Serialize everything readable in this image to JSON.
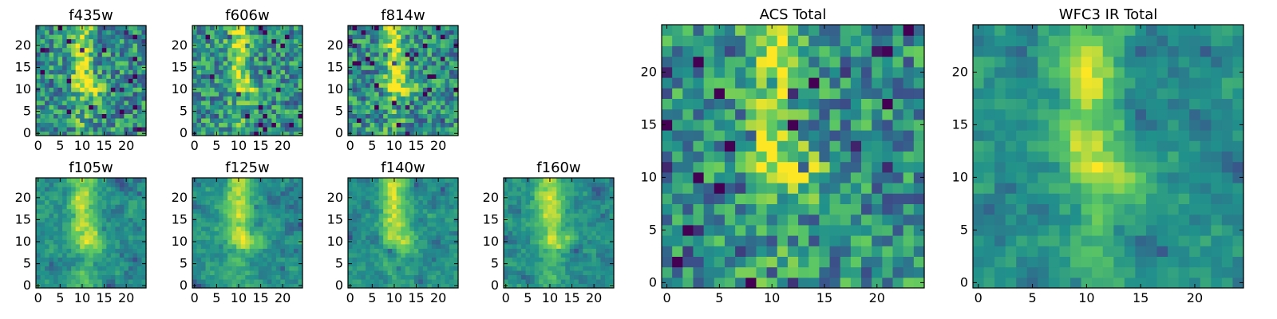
{
  "chart_data": {
    "type": "heatmap",
    "colormap": "viridis",
    "colorscale": [
      "#440154",
      "#3b528b",
      "#21918c",
      "#5ec962",
      "#fde725"
    ],
    "grid_size": [
      25,
      25
    ],
    "value_range": [
      0,
      1
    ],
    "axis_range": [
      -0.5,
      24.5
    ],
    "grid": false,
    "legend": "none",
    "cell_values": "per-pixel values are not readable from the figure",
    "panels": [
      {
        "title": "f435w",
        "xticks": [
          0,
          5,
          10,
          15,
          20
        ],
        "yticks": [
          0,
          5,
          10,
          15,
          20
        ]
      },
      {
        "title": "f606w",
        "xticks": [
          0,
          5,
          10,
          15,
          20
        ],
        "yticks": [
          0,
          5,
          10,
          15,
          20
        ]
      },
      {
        "title": "f814w",
        "xticks": [
          0,
          5,
          10,
          15,
          20
        ],
        "yticks": [
          0,
          5,
          10,
          15,
          20
        ]
      },
      {
        "title": "f105w",
        "xticks": [
          0,
          5,
          10,
          15,
          20
        ],
        "yticks": [
          0,
          5,
          10,
          15,
          20
        ]
      },
      {
        "title": "f125w",
        "xticks": [
          0,
          5,
          10,
          15,
          20
        ],
        "yticks": [
          0,
          5,
          10,
          15,
          20
        ]
      },
      {
        "title": "f140w",
        "xticks": [
          0,
          5,
          10,
          15,
          20
        ],
        "yticks": [
          0,
          5,
          10,
          15,
          20
        ]
      },
      {
        "title": "f160w",
        "xticks": [
          0,
          5,
          10,
          15,
          20
        ],
        "yticks": [
          0,
          5,
          10,
          15,
          20
        ]
      },
      {
        "title": "ACS Total",
        "xticks": [
          0,
          5,
          10,
          15,
          20
        ],
        "yticks": [
          0,
          5,
          10,
          15,
          20
        ]
      },
      {
        "title": "WFC3 IR Total",
        "xticks": [
          0,
          5,
          10,
          15,
          20
        ],
        "yticks": [
          0,
          5,
          10,
          15,
          20
        ]
      }
    ]
  }
}
